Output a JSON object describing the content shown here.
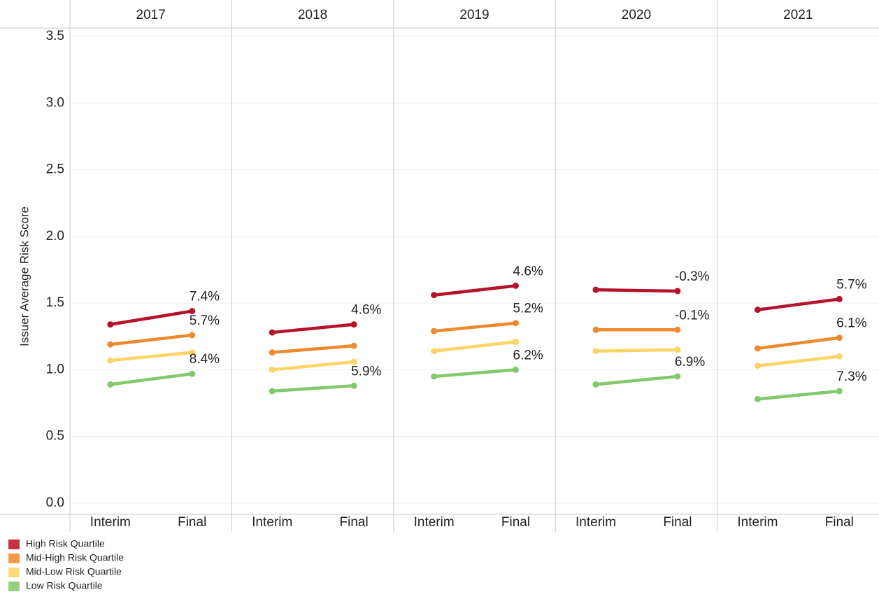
{
  "chart_data": {
    "type": "line",
    "y_label": "Issuer Average Risk Score",
    "ylim": [
      0,
      3.5
    ],
    "yticks": [
      {
        "value": 0,
        "label": "0.0"
      },
      0.5,
      {
        "value": 1,
        "label": "1.0"
      },
      1.5,
      {
        "value": 2,
        "label": "2.0"
      },
      2.5,
      {
        "value": 3,
        "label": "3.0"
      },
      3.5
    ],
    "grid": true,
    "legend": [
      {
        "name": "High Risk Quartile",
        "color": "#b5132b",
        "swatch": "#c8313f"
      },
      {
        "name": "Mid-High Risk Quartile",
        "color": "#ee8a2e",
        "swatch": "#f39a45"
      },
      {
        "name": "Mid-Low Risk Quartile",
        "color": "#fcd566",
        "swatch": "#fddb7a"
      },
      {
        "name": "Low Risk Quartile",
        "color": "#84c86c",
        "swatch": "#95d07f"
      }
    ],
    "panels": [
      {
        "title": "2017",
        "categories": [
          "Interim",
          "Final"
        ],
        "series": [
          {
            "values": [
              1.34,
              1.44
            ],
            "label": "7.4%"
          },
          {
            "values": [
              1.19,
              1.26
            ],
            "label": "5.7%"
          },
          {
            "values": [
              1.07,
              1.13
            ],
            "label": null
          },
          {
            "values": [
              0.89,
              0.97
            ],
            "label": "8.4%"
          }
        ]
      },
      {
        "title": "2018",
        "categories": [
          "Interim",
          "Final"
        ],
        "series": [
          {
            "values": [
              1.28,
              1.34
            ],
            "label": "4.6%"
          },
          {
            "values": [
              1.13,
              1.18
            ],
            "label": null
          },
          {
            "values": [
              1.0,
              1.06
            ],
            "label": null
          },
          {
            "values": [
              0.84,
              0.88
            ],
            "label": "5.9%"
          }
        ]
      },
      {
        "title": "2019",
        "categories": [
          "Interim",
          "Final"
        ],
        "series": [
          {
            "values": [
              1.56,
              1.63
            ],
            "label": "4.6%"
          },
          {
            "values": [
              1.29,
              1.35
            ],
            "label": "5.2%"
          },
          {
            "values": [
              1.14,
              1.21
            ],
            "label": null
          },
          {
            "values": [
              0.95,
              1.0
            ],
            "label": "6.2%"
          }
        ]
      },
      {
        "title": "2020",
        "categories": [
          "Interim",
          "Final"
        ],
        "series": [
          {
            "values": [
              1.6,
              1.59
            ],
            "label": "-0.3%"
          },
          {
            "values": [
              1.3,
              1.3
            ],
            "label": "-0.1%"
          },
          {
            "values": [
              1.14,
              1.15
            ],
            "label": null
          },
          {
            "values": [
              0.89,
              0.95
            ],
            "label": "6.9%"
          }
        ]
      },
      {
        "title": "2021",
        "categories": [
          "Interim",
          "Final"
        ],
        "series": [
          {
            "values": [
              1.45,
              1.53
            ],
            "label": "5.7%"
          },
          {
            "values": [
              1.16,
              1.24
            ],
            "label": "6.1%"
          },
          {
            "values": [
              1.03,
              1.1
            ],
            "label": null
          },
          {
            "values": [
              0.78,
              0.84
            ],
            "label": "7.3%"
          }
        ]
      }
    ]
  }
}
